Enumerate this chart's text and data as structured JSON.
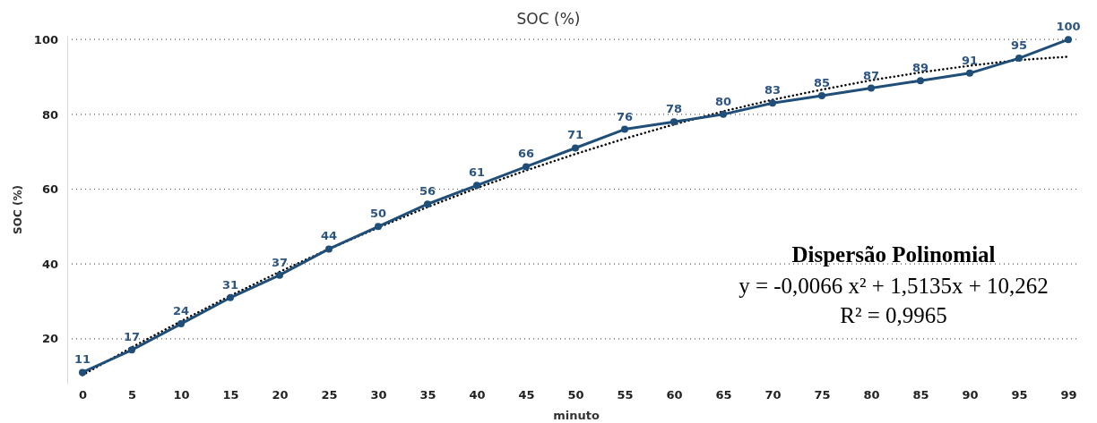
{
  "chart_data": {
    "type": "line",
    "title": "SOC (%)",
    "xlabel": "minuto",
    "ylabel": "SOC (%)",
    "categories": [
      "0",
      "5",
      "10",
      "15",
      "20",
      "25",
      "30",
      "35",
      "40",
      "45",
      "50",
      "55",
      "60",
      "65",
      "70",
      "75",
      "80",
      "85",
      "90",
      "95",
      "99"
    ],
    "series": [
      {
        "color": "#1f4e79",
        "values": [
          11,
          17,
          24,
          31,
          37,
          44,
          50,
          56,
          61,
          66,
          71,
          76,
          78,
          80,
          83,
          85,
          87,
          89,
          91,
          95,
          100
        ],
        "marker": "circle",
        "line_style": "solid",
        "data_labels": true
      },
      {
        "color": "#000000",
        "values": [
          10.3,
          17.7,
          24.7,
          31.5,
          37.9,
          44.0,
          49.7,
          55.2,
          60.3,
          65.0,
          69.4,
          73.5,
          77.3,
          80.8,
          83.9,
          86.6,
          89.1,
          91.2,
          93.0,
          94.5,
          95.4
        ],
        "marker": "none",
        "line_style": "dotted"
      }
    ],
    "ylim": [
      8,
      101
    ],
    "yticks": [
      20,
      40,
      60,
      80,
      100
    ],
    "grid": "y",
    "annotations": [
      "Dispersão Polinomial",
      "y = -0,0066 x² + 1,5135x + 10,262",
      "R² = 0,9965"
    ]
  }
}
